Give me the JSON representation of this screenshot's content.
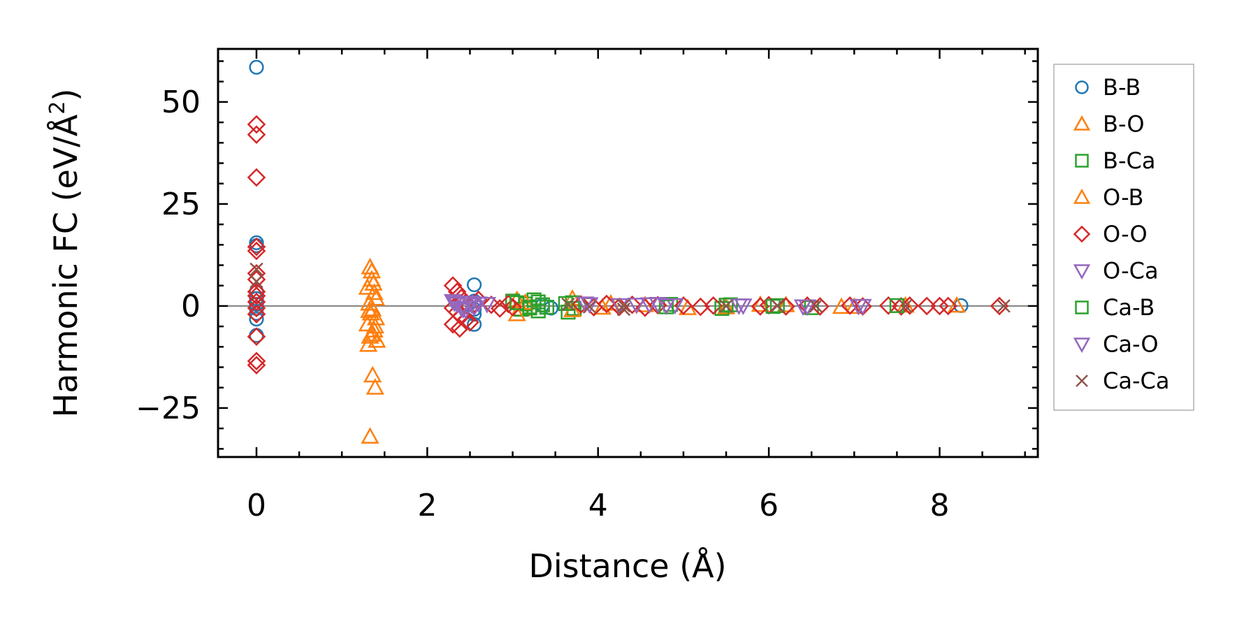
{
  "chart_data": {
    "type": "scatter",
    "title": "",
    "xlabel": "Distance (Å)",
    "ylabel": "Harmonic FC (eV/Å²)",
    "ylabel_parts": {
      "main": "Harmonic FC (eV/Å",
      "sup": "2",
      "close": ")"
    },
    "xlim": [
      -0.45,
      9.15
    ],
    "ylim": [
      -37,
      63
    ],
    "xticks": [
      0,
      2,
      4,
      6,
      8
    ],
    "xtick_labels": [
      "0",
      "2",
      "4",
      "6",
      "8"
    ],
    "yticks": [
      -25,
      0,
      25,
      50
    ],
    "ytick_labels": [
      "−25",
      "0",
      "25",
      "50"
    ],
    "x_minor_step": 0.5,
    "y_minor_step": 5,
    "zero_line": true,
    "legend_position": "right-outside-top",
    "series": [
      {
        "name": "B-B",
        "marker": "circle",
        "color": "#1f77b4",
        "points": [
          [
            0,
            58.5
          ],
          [
            0,
            15.5
          ],
          [
            0,
            14.8
          ],
          [
            0,
            3.5
          ],
          [
            0,
            1.8
          ],
          [
            0,
            0.4
          ],
          [
            0,
            -0.6
          ],
          [
            0,
            -1.8
          ],
          [
            0,
            -3.2
          ],
          [
            0,
            -7.2
          ],
          [
            2.55,
            5.2
          ],
          [
            2.55,
            1.2
          ],
          [
            2.55,
            -0.8
          ],
          [
            2.55,
            -2.0
          ],
          [
            2.55,
            -4.5
          ],
          [
            3.35,
            0.2
          ],
          [
            3.45,
            -0.5
          ],
          [
            8.25,
            0.1
          ]
        ]
      },
      {
        "name": "B-O",
        "marker": "triangle-up",
        "color": "#ff7f0e",
        "points": [
          [
            1.33,
            9.5
          ],
          [
            1.35,
            6.5
          ],
          [
            1.3,
            4.5
          ],
          [
            1.38,
            3.2
          ],
          [
            1.4,
            1.8
          ],
          [
            1.32,
            0.6
          ],
          [
            1.36,
            -0.8
          ],
          [
            1.34,
            -1.8
          ],
          [
            1.4,
            -3.0
          ],
          [
            1.3,
            -4.5
          ],
          [
            1.38,
            -6.0
          ],
          [
            1.33,
            -7.5
          ],
          [
            1.41,
            -8.5
          ],
          [
            1.31,
            -9.5
          ],
          [
            1.36,
            -17.0
          ],
          [
            1.39,
            -20.0
          ],
          [
            1.33,
            -32.0
          ],
          [
            3.05,
            1.5
          ],
          [
            3.1,
            -0.8
          ],
          [
            3.7,
            1.8
          ],
          [
            4.05,
            -0.4
          ],
          [
            4.55,
            0.2
          ],
          [
            5.5,
            -0.3
          ],
          [
            6.2,
            0.2
          ],
          [
            7.0,
            -0.2
          ],
          [
            8.2,
            0.1
          ]
        ]
      },
      {
        "name": "B-Ca",
        "marker": "square",
        "color": "#2ca02c",
        "points": [
          [
            3.0,
            1.2
          ],
          [
            3.1,
            -0.8
          ],
          [
            3.15,
            0.5
          ],
          [
            3.25,
            1.5
          ],
          [
            3.3,
            -1.2
          ],
          [
            3.35,
            0.3
          ],
          [
            3.2,
            -0.2
          ],
          [
            3.65,
            -1.5
          ],
          [
            3.7,
            0.8
          ],
          [
            3.72,
            -0.6
          ],
          [
            4.85,
            0.4
          ],
          [
            5.45,
            -0.6
          ],
          [
            5.55,
            0.3
          ],
          [
            6.1,
            0.1
          ],
          [
            6.5,
            -0.4
          ]
        ]
      },
      {
        "name": "O-B",
        "marker": "triangle-up",
        "color": "#ff7f0e",
        "points": [
          [
            1.35,
            8.5
          ],
          [
            1.37,
            5.5
          ],
          [
            1.32,
            -1.2
          ],
          [
            1.39,
            -5.0
          ],
          [
            1.35,
            -7.0
          ],
          [
            3.05,
            -2.0
          ],
          [
            3.15,
            0.8
          ],
          [
            3.7,
            -1.0
          ],
          [
            4.15,
            0.6
          ],
          [
            5.05,
            -0.5
          ],
          [
            5.9,
            0.3
          ],
          [
            6.85,
            -0.2
          ],
          [
            7.6,
            0.1
          ]
        ]
      },
      {
        "name": "O-O",
        "marker": "diamond",
        "color": "#d62728",
        "points": [
          [
            0,
            44.5
          ],
          [
            0,
            42.0
          ],
          [
            0,
            31.5
          ],
          [
            0,
            14.5
          ],
          [
            0,
            13.5
          ],
          [
            0,
            8.0
          ],
          [
            0,
            6.5
          ],
          [
            0,
            3.5
          ],
          [
            0,
            2.5
          ],
          [
            0,
            1.0
          ],
          [
            0,
            -0.5
          ],
          [
            0,
            -2.0
          ],
          [
            0,
            -7.5
          ],
          [
            0,
            -13.5
          ],
          [
            0,
            -14.5
          ],
          [
            2.3,
            5.0
          ],
          [
            2.35,
            3.5
          ],
          [
            2.4,
            2.0
          ],
          [
            2.45,
            0.8
          ],
          [
            2.3,
            -0.5
          ],
          [
            2.35,
            -1.5
          ],
          [
            2.4,
            -2.5
          ],
          [
            2.45,
            -3.5
          ],
          [
            2.3,
            -4.5
          ],
          [
            2.38,
            -5.5
          ],
          [
            2.5,
            -4.0
          ],
          [
            2.55,
            0.5
          ],
          [
            2.6,
            1.5
          ],
          [
            2.75,
            0.3
          ],
          [
            2.85,
            -0.6
          ],
          [
            2.95,
            0.5
          ],
          [
            3.0,
            -0.3
          ],
          [
            3.8,
            0.4
          ],
          [
            3.95,
            -0.3
          ],
          [
            4.1,
            0.5
          ],
          [
            4.25,
            -0.2
          ],
          [
            4.4,
            0.3
          ],
          [
            4.55,
            -0.4
          ],
          [
            4.7,
            0.2
          ],
          [
            5.0,
            0.1
          ],
          [
            5.2,
            -0.2
          ],
          [
            5.35,
            0.1
          ],
          [
            5.9,
            -0.1
          ],
          [
            6.0,
            0.2
          ],
          [
            6.2,
            -0.1
          ],
          [
            6.45,
            0.1
          ],
          [
            6.6,
            -0.1
          ],
          [
            6.95,
            0.1
          ],
          [
            7.1,
            -0.1
          ],
          [
            7.4,
            0.1
          ],
          [
            7.55,
            -0.1
          ],
          [
            7.65,
            0.1
          ],
          [
            7.85,
            0.0
          ],
          [
            8.0,
            0.0
          ],
          [
            8.1,
            0.0
          ],
          [
            8.7,
            0.0
          ]
        ]
      },
      {
        "name": "O-Ca",
        "marker": "triangle-down",
        "color": "#9467bd",
        "points": [
          [
            2.3,
            1.2
          ],
          [
            2.35,
            0.5
          ],
          [
            2.4,
            -0.5
          ],
          [
            2.45,
            -1.0
          ],
          [
            2.5,
            0.8
          ],
          [
            2.55,
            -0.3
          ],
          [
            2.7,
            0.5
          ],
          [
            3.85,
            0.6
          ],
          [
            4.45,
            0.3
          ],
          [
            4.7,
            0.5
          ],
          [
            4.9,
            0.2
          ],
          [
            5.7,
            0.1
          ],
          [
            6.45,
            -0.1
          ],
          [
            7.1,
            0.0
          ]
        ]
      },
      {
        "name": "Ca-B",
        "marker": "square",
        "color": "#2ca02c",
        "points": [
          [
            3.05,
            0.8
          ],
          [
            3.2,
            -0.5
          ],
          [
            3.3,
            1.0
          ],
          [
            3.4,
            -0.3
          ],
          [
            3.62,
            0.6
          ],
          [
            4.8,
            -0.2
          ],
          [
            5.5,
            0.2
          ],
          [
            6.05,
            -0.1
          ],
          [
            7.5,
            0.1
          ]
        ]
      },
      {
        "name": "Ca-O",
        "marker": "triangle-down",
        "color": "#9467bd",
        "points": [
          [
            2.32,
            0.8
          ],
          [
            2.42,
            -0.8
          ],
          [
            2.52,
            0.3
          ],
          [
            2.6,
            0.6
          ],
          [
            3.9,
            0.4
          ],
          [
            4.25,
            0.2
          ],
          [
            4.6,
            0.4
          ],
          [
            4.8,
            0.1
          ],
          [
            5.65,
            0.1
          ],
          [
            6.4,
            -0.1
          ],
          [
            7.05,
            0.0
          ]
        ]
      },
      {
        "name": "Ca-Ca",
        "marker": "x",
        "color": "#8c564b",
        "points": [
          [
            0,
            9.0
          ],
          [
            0,
            6.0
          ],
          [
            3.65,
            0.4
          ],
          [
            3.9,
            -0.2
          ],
          [
            4.3,
            0.1
          ],
          [
            4.3,
            -0.8
          ],
          [
            5.5,
            0.0
          ],
          [
            6.1,
            0.1
          ],
          [
            6.55,
            0.0
          ],
          [
            7.6,
            0.0
          ],
          [
            8.75,
            0.0
          ]
        ]
      }
    ]
  }
}
